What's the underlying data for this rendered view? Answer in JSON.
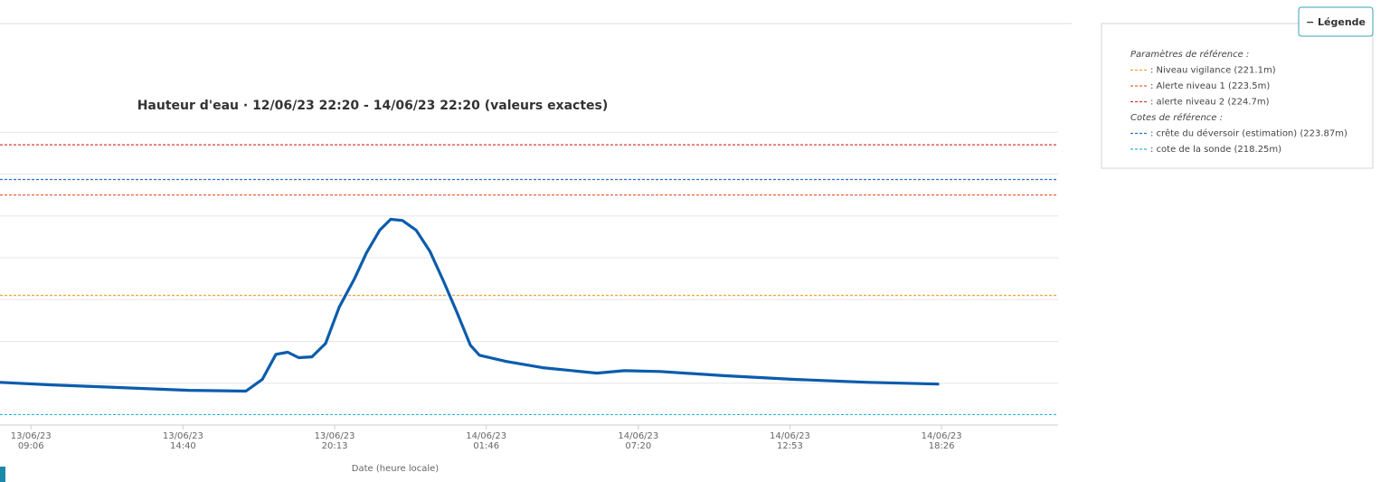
{
  "chart_data": {
    "type": "line",
    "title": "Hauteur d'eau · 12/06/23 22:20 - 14/06/23 22:20 (valeurs exactes)",
    "x_label": "Date (heure locale)",
    "xlim": [
      "13/06/23 07:58",
      "14/06/23 22:42"
    ],
    "xticks": [
      "13/06/23 09:06",
      "13/06/23 14:40",
      "13/06/23 20:13",
      "14/06/23 01:46",
      "14/06/23 07:20",
      "14/06/23 12:53",
      "14/06/23 18:26"
    ],
    "ylim": [
      218,
      227.6
    ],
    "yticks": [
      218,
      219,
      220,
      221,
      222,
      223,
      224,
      225
    ],
    "grid": true,
    "series": [
      {
        "color": "#0b5cad",
        "x": [
          "13/06/23 07:58",
          "13/06/23 09:51",
          "13/06/23 14:53",
          "13/06/23 16:58",
          "13/06/23 17:34",
          "13/06/23 18:04",
          "13/06/23 18:30",
          "13/06/23 18:54",
          "13/06/23 19:23",
          "13/06/23 19:53",
          "13/06/23 20:23",
          "13/06/23 20:57",
          "13/06/23 21:23",
          "13/06/23 21:52",
          "13/06/23 22:16",
          "13/06/23 22:42",
          "13/06/23 23:12",
          "13/06/23 23:42",
          "14/06/23 00:11",
          "14/06/23 00:41",
          "14/06/23 01:11",
          "14/06/23 01:31",
          "14/06/23 02:30",
          "14/06/23 03:50",
          "14/06/23 05:49",
          "14/06/23 06:49",
          "14/06/23 08:08",
          "14/06/23 10:27",
          "14/06/23 13:06",
          "14/06/23 15:45",
          "14/06/23 18:18"
        ],
        "values": [
          219.02,
          218.96,
          218.83,
          218.81,
          219.09,
          219.69,
          219.74,
          219.61,
          219.63,
          219.95,
          220.82,
          221.51,
          222.12,
          222.66,
          222.92,
          222.89,
          222.66,
          222.16,
          221.47,
          220.71,
          219.91,
          219.67,
          219.52,
          219.37,
          219.24,
          219.3,
          219.28,
          219.18,
          219.09,
          219.02,
          218.98
        ]
      }
    ],
    "legend_button": "− Légende",
    "legend_groups": [
      {
        "title": "Paramètres de référence :",
        "items": [
          {
            "label": ": Niveau vigilance (221.1m)",
            "value": 221.1,
            "color": "#f0a040"
          },
          {
            "label": ": Alerte niveau 1 (223.5m)",
            "value": 223.5,
            "color": "#e8643c"
          },
          {
            "label": ": alerte niveau 2 (224.7m)",
            "value": 224.7,
            "color": "#d83a3a"
          }
        ]
      },
      {
        "title": "Cotes de référence :",
        "items": [
          {
            "label": ": crête du déversoir (estimation) (223.87m)",
            "value": 223.87,
            "color": "#2e6fc4"
          },
          {
            "label": ": cote de la sonde (218.25m)",
            "value": 218.25,
            "color": "#2cb6d8"
          }
        ]
      }
    ]
  }
}
